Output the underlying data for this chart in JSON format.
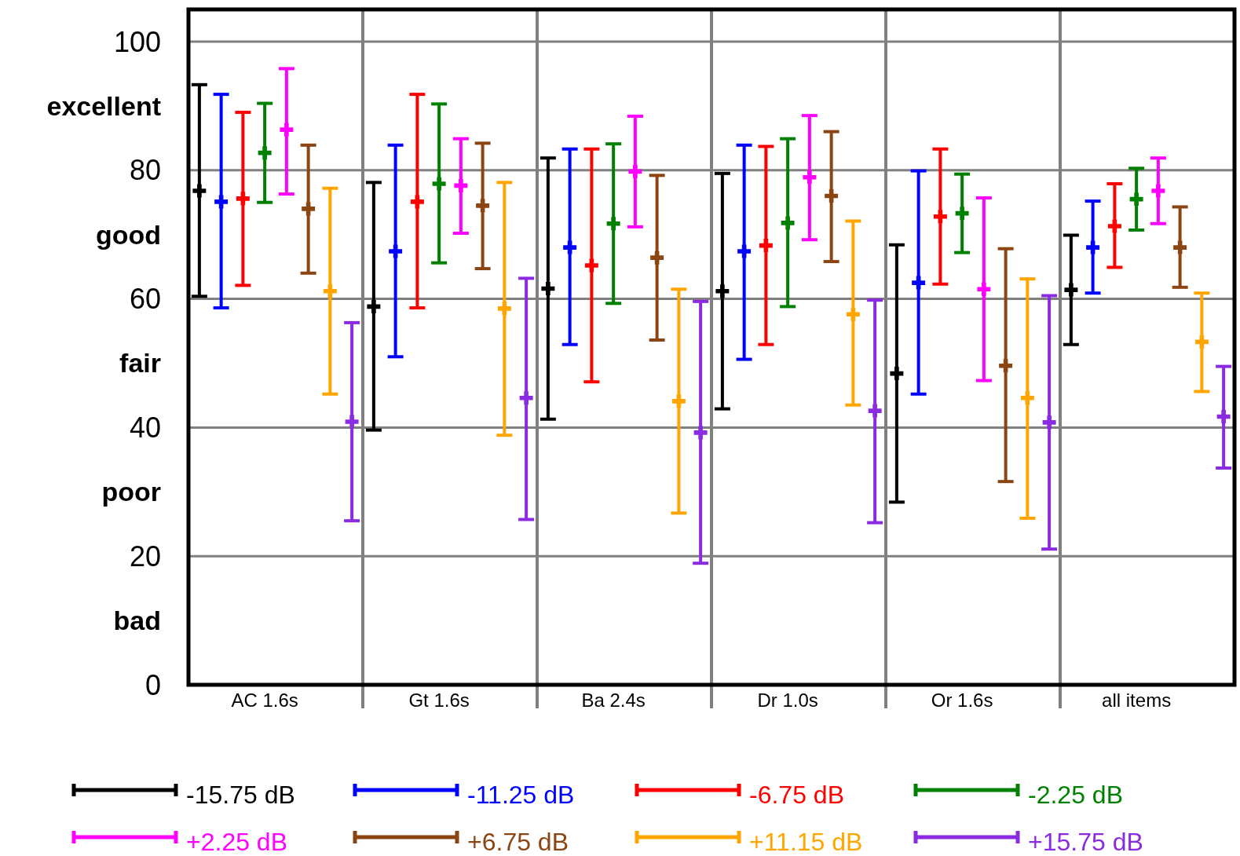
{
  "chart_data": {
    "type": "scatter",
    "categories": [
      null,
      null,
      null,
      "AC 1.6s",
      null,
      null,
      null,
      null,
      null,
      null,
      null,
      "Gt 1.6s",
      null,
      null,
      null,
      null,
      null,
      null,
      null,
      "Ba 2.4s",
      null,
      null,
      null,
      null,
      null,
      null,
      null,
      "Dr 1.0s",
      null,
      null,
      null,
      null,
      null,
      null,
      null,
      "Or 1.6s",
      null,
      null,
      null,
      null,
      null,
      null,
      null,
      "all items",
      null,
      null,
      null,
      null
    ],
    "ylim": [
      0,
      105
    ],
    "yticks": [
      0,
      {
        "value": 10,
        "label": "bad"
      },
      20,
      {
        "value": 30,
        "label": "poor"
      },
      40,
      {
        "value": 50,
        "label": "fair"
      },
      60,
      {
        "value": 70,
        "label": "good"
      },
      80,
      {
        "value": 90,
        "label": "excellent"
      },
      100
    ],
    "grid": "y",
    "legend": "bottom",
    "marker": "cross",
    "series": [
      {
        "name": "-15.75 dB",
        "color": "#000000",
        "values": [
          76.8,
          null,
          null,
          null,
          null,
          null,
          null,
          null,
          58.8,
          null,
          null,
          null,
          null,
          null,
          null,
          null,
          61.6,
          null,
          null,
          null,
          null,
          null,
          null,
          null,
          61.2,
          null,
          null,
          null,
          null,
          null,
          null,
          null,
          48.4,
          null,
          null,
          null,
          null,
          null,
          null,
          null,
          61.4,
          null,
          null,
          null,
          null,
          null,
          null,
          null
        ],
        "errors": [
          [
            60.4,
            93.3
          ],
          null,
          null,
          null,
          null,
          null,
          null,
          null,
          [
            39.6,
            78.1
          ],
          null,
          null,
          null,
          null,
          null,
          null,
          null,
          [
            41.3,
            81.9
          ],
          null,
          null,
          null,
          null,
          null,
          null,
          null,
          [
            42.9,
            79.5
          ],
          null,
          null,
          null,
          null,
          null,
          null,
          null,
          [
            28.4,
            68.4
          ],
          null,
          null,
          null,
          null,
          null,
          null,
          null,
          [
            52.9,
            69.9
          ],
          null,
          null,
          null,
          null,
          null,
          null,
          null
        ]
      },
      {
        "name": "-11.25 dB",
        "color": "#0000ff",
        "values": [
          null,
          75.1,
          null,
          null,
          null,
          null,
          null,
          null,
          null,
          67.4,
          null,
          null,
          null,
          null,
          null,
          null,
          null,
          68,
          null,
          null,
          null,
          null,
          null,
          null,
          null,
          67.4,
          null,
          null,
          null,
          null,
          null,
          null,
          null,
          62.5,
          null,
          null,
          null,
          null,
          null,
          null,
          null,
          68,
          null,
          null,
          null,
          null,
          null,
          null
        ],
        "errors": [
          null,
          [
            58.6,
            91.8
          ],
          null,
          null,
          null,
          null,
          null,
          null,
          null,
          [
            51,
            83.9
          ],
          null,
          null,
          null,
          null,
          null,
          null,
          null,
          [
            52.9,
            83.3
          ],
          null,
          null,
          null,
          null,
          null,
          null,
          null,
          [
            50.6,
            83.9
          ],
          null,
          null,
          null,
          null,
          null,
          null,
          null,
          [
            45.2,
            79.9
          ],
          null,
          null,
          null,
          null,
          null,
          null,
          null,
          [
            60.9,
            75.2
          ],
          null,
          null,
          null,
          null,
          null,
          null
        ]
      },
      {
        "name": "-6.75 dB",
        "color": "#ff0000",
        "values": [
          null,
          null,
          75.6,
          null,
          null,
          null,
          null,
          null,
          null,
          null,
          75.1,
          null,
          null,
          null,
          null,
          null,
          null,
          null,
          65.2,
          null,
          null,
          null,
          null,
          null,
          null,
          null,
          68.3,
          null,
          null,
          null,
          null,
          null,
          null,
          null,
          72.8,
          null,
          null,
          null,
          null,
          null,
          null,
          null,
          71.3,
          null,
          null,
          null,
          null,
          null
        ],
        "errors": [
          null,
          null,
          [
            62.1,
            89
          ],
          null,
          null,
          null,
          null,
          null,
          null,
          null,
          [
            58.6,
            91.8
          ],
          null,
          null,
          null,
          null,
          null,
          null,
          null,
          [
            47.1,
            83.3
          ],
          null,
          null,
          null,
          null,
          null,
          null,
          null,
          [
            52.9,
            83.7
          ],
          null,
          null,
          null,
          null,
          null,
          null,
          null,
          [
            62.3,
            83.3
          ],
          null,
          null,
          null,
          null,
          null,
          null,
          null,
          [
            64.9,
            77.9
          ],
          null,
          null,
          null,
          null,
          null
        ]
      },
      {
        "name": "-2.25 dB",
        "color": "#008000",
        "values": [
          null,
          null,
          null,
          82.7,
          null,
          null,
          null,
          null,
          null,
          null,
          null,
          77.9,
          null,
          null,
          null,
          null,
          null,
          null,
          null,
          71.7,
          null,
          null,
          null,
          null,
          null,
          null,
          null,
          71.8,
          null,
          null,
          null,
          null,
          null,
          null,
          null,
          73.3,
          null,
          null,
          null,
          null,
          null,
          null,
          null,
          75.5,
          null,
          null,
          null,
          null
        ],
        "errors": [
          null,
          null,
          null,
          [
            75,
            90.4
          ],
          null,
          null,
          null,
          null,
          null,
          null,
          null,
          [
            65.6,
            90.3
          ],
          null,
          null,
          null,
          null,
          null,
          null,
          null,
          [
            59.3,
            84.1
          ],
          null,
          null,
          null,
          null,
          null,
          null,
          null,
          [
            58.8,
            84.9
          ],
          null,
          null,
          null,
          null,
          null,
          null,
          null,
          [
            67.2,
            79.4
          ],
          null,
          null,
          null,
          null,
          null,
          null,
          null,
          [
            70.7,
            80.3
          ],
          null,
          null,
          null,
          null
        ]
      },
      {
        "name": "+2.25 dB",
        "color": "#ff00ff",
        "values": [
          null,
          null,
          null,
          null,
          86.3,
          null,
          null,
          null,
          null,
          null,
          null,
          null,
          77.6,
          null,
          null,
          null,
          null,
          null,
          null,
          null,
          79.8,
          null,
          null,
          null,
          null,
          null,
          null,
          null,
          78.9,
          null,
          null,
          null,
          null,
          null,
          null,
          null,
          61.5,
          null,
          null,
          null,
          null,
          null,
          null,
          null,
          76.8,
          null,
          null,
          null
        ],
        "errors": [
          null,
          null,
          null,
          null,
          [
            76.3,
            95.8
          ],
          null,
          null,
          null,
          null,
          null,
          null,
          null,
          [
            70.2,
            84.9
          ],
          null,
          null,
          null,
          null,
          null,
          null,
          null,
          [
            71.2,
            88.4
          ],
          null,
          null,
          null,
          null,
          null,
          null,
          null,
          [
            69.2,
            88.5
          ],
          null,
          null,
          null,
          null,
          null,
          null,
          null,
          [
            47.3,
            75.7
          ],
          null,
          null,
          null,
          null,
          null,
          null,
          null,
          [
            71.7,
            81.9
          ],
          null,
          null,
          null
        ]
      },
      {
        "name": "+6.75 dB",
        "color": "#8b4513",
        "values": [
          null,
          null,
          null,
          null,
          null,
          74,
          null,
          null,
          null,
          null,
          null,
          null,
          null,
          74.5,
          null,
          null,
          null,
          null,
          null,
          null,
          null,
          66.4,
          null,
          null,
          null,
          null,
          null,
          null,
          null,
          76,
          null,
          null,
          null,
          null,
          null,
          null,
          null,
          49.6,
          null,
          null,
          null,
          null,
          null,
          null,
          null,
          68,
          null,
          null
        ],
        "errors": [
          null,
          null,
          null,
          null,
          null,
          [
            64,
            83.9
          ],
          null,
          null,
          null,
          null,
          null,
          null,
          null,
          [
            64.7,
            84.2
          ],
          null,
          null,
          null,
          null,
          null,
          null,
          null,
          [
            53.6,
            79.2
          ],
          null,
          null,
          null,
          null,
          null,
          null,
          null,
          [
            65.8,
            86
          ],
          null,
          null,
          null,
          null,
          null,
          null,
          null,
          [
            31.6,
            67.8
          ],
          null,
          null,
          null,
          null,
          null,
          null,
          null,
          [
            61.8,
            74.3
          ],
          null,
          null
        ]
      },
      {
        "name": "+11.15 dB",
        "color": "#ffa500",
        "values": [
          null,
          null,
          null,
          null,
          null,
          null,
          61.2,
          null,
          null,
          null,
          null,
          null,
          null,
          null,
          58.5,
          null,
          null,
          null,
          null,
          null,
          null,
          null,
          44.1,
          null,
          null,
          null,
          null,
          null,
          null,
          null,
          57.6,
          null,
          null,
          null,
          null,
          null,
          null,
          null,
          44.6,
          null,
          null,
          null,
          null,
          null,
          null,
          null,
          53.3,
          null
        ],
        "errors": [
          null,
          null,
          null,
          null,
          null,
          null,
          [
            45.2,
            77.2
          ],
          null,
          null,
          null,
          null,
          null,
          null,
          null,
          [
            38.8,
            78.1
          ],
          null,
          null,
          null,
          null,
          null,
          null,
          null,
          [
            26.7,
            61.5
          ],
          null,
          null,
          null,
          null,
          null,
          null,
          null,
          [
            43.5,
            72.1
          ],
          null,
          null,
          null,
          null,
          null,
          null,
          null,
          [
            25.9,
            63.1
          ],
          null,
          null,
          null,
          null,
          null,
          null,
          null,
          [
            45.6,
            60.9
          ],
          null
        ]
      },
      {
        "name": "+15.75 dB",
        "color": "#8a2be2",
        "values": [
          null,
          null,
          null,
          null,
          null,
          null,
          null,
          40.9,
          null,
          null,
          null,
          null,
          null,
          null,
          null,
          44.6,
          null,
          null,
          null,
          null,
          null,
          null,
          null,
          39.2,
          null,
          null,
          null,
          null,
          null,
          null,
          null,
          42.6,
          null,
          null,
          null,
          null,
          null,
          null,
          null,
          40.8,
          null,
          null,
          null,
          null,
          null,
          null,
          null,
          41.7
        ],
        "errors": [
          null,
          null,
          null,
          null,
          null,
          null,
          null,
          [
            25.5,
            56.3
          ],
          null,
          null,
          null,
          null,
          null,
          null,
          null,
          [
            25.7,
            63.2
          ],
          null,
          null,
          null,
          null,
          null,
          null,
          null,
          [
            18.9,
            59.6
          ],
          null,
          null,
          null,
          null,
          null,
          null,
          null,
          [
            25.2,
            59.8
          ],
          null,
          null,
          null,
          null,
          null,
          null,
          null,
          [
            21.1,
            60.5
          ],
          null,
          null,
          null,
          null,
          null,
          null,
          null,
          [
            33.7,
            49.5
          ]
        ]
      }
    ]
  }
}
